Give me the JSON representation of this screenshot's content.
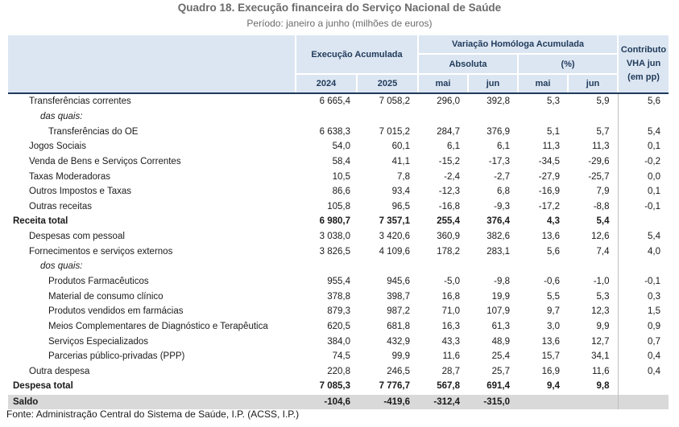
{
  "title": "Quadro 18. Execução financeira do Serviço Nacional de Saúde",
  "subtitle": "Período: janeiro a junho (milhões de euros)",
  "header": {
    "execucao": "Execução Acumulada",
    "variacao": "Variação Homóloga Acumulada",
    "absoluta": "Absoluta",
    "percent": "(%)",
    "contributo": "Contributo VHA jun (em pp)",
    "y2024": "2024",
    "y2025": "2025",
    "mai": "mai",
    "jun": "jun",
    "mai2": "mai",
    "jun2": "jun"
  },
  "rows": [
    {
      "label": "Transferências correntes",
      "v2024": "6 665,4",
      "v2025": "7 058,2",
      "abs_mai": "296,0",
      "abs_jun": "392,8",
      "pct_mai": "5,3",
      "pct_jun": "5,9",
      "contrib": "5,6"
    },
    {
      "label": "das quais:"
    },
    {
      "label": "Transferências do OE",
      "v2024": "6 638,3",
      "v2025": "7 015,2",
      "abs_mai": "284,7",
      "abs_jun": "376,9",
      "pct_mai": "5,1",
      "pct_jun": "5,7",
      "contrib": "5,4"
    },
    {
      "label": "Jogos Sociais",
      "v2024": "54,0",
      "v2025": "60,1",
      "abs_mai": "6,1",
      "abs_jun": "6,1",
      "pct_mai": "11,3",
      "pct_jun": "11,3",
      "contrib": "0,1"
    },
    {
      "label": "Venda de Bens e Serviços Correntes",
      "v2024": "58,4",
      "v2025": "41,1",
      "abs_mai": "-15,2",
      "abs_jun": "-17,3",
      "pct_mai": "-34,5",
      "pct_jun": "-29,6",
      "contrib": "-0,2"
    },
    {
      "label": "Taxas Moderadoras",
      "v2024": "10,5",
      "v2025": "7,8",
      "abs_mai": "-2,4",
      "abs_jun": "-2,7",
      "pct_mai": "-27,9",
      "pct_jun": "-25,7",
      "contrib": "0,0"
    },
    {
      "label": "Outros Impostos e Taxas",
      "v2024": "86,6",
      "v2025": "93,4",
      "abs_mai": "-12,3",
      "abs_jun": "6,8",
      "pct_mai": "-16,9",
      "pct_jun": "7,9",
      "contrib": "0,1"
    },
    {
      "label": "Outras receitas",
      "v2024": "105,8",
      "v2025": "96,5",
      "abs_mai": "-16,8",
      "abs_jun": "-9,3",
      "pct_mai": "-17,2",
      "pct_jun": "-8,8",
      "contrib": "-0,1"
    },
    {
      "label": "Receita total",
      "v2024": "6 980,7",
      "v2025": "7 357,1",
      "abs_mai": "255,4",
      "abs_jun": "376,4",
      "pct_mai": "4,3",
      "pct_jun": "5,4",
      "contrib": ""
    },
    {
      "label": "Despesas com pessoal",
      "v2024": "3 038,0",
      "v2025": "3 420,6",
      "abs_mai": "360,9",
      "abs_jun": "382,6",
      "pct_mai": "13,6",
      "pct_jun": "12,6",
      "contrib": "5,4"
    },
    {
      "label": "Fornecimentos e serviços externos",
      "v2024": "3 826,5",
      "v2025": "4 109,6",
      "abs_mai": "178,2",
      "abs_jun": "283,1",
      "pct_mai": "5,6",
      "pct_jun": "7,4",
      "contrib": "4,0"
    },
    {
      "label": "dos quais:"
    },
    {
      "label": "Produtos Farmacêuticos",
      "v2024": "955,4",
      "v2025": "945,6",
      "abs_mai": "-5,0",
      "abs_jun": "-9,8",
      "pct_mai": "-0,6",
      "pct_jun": "-1,0",
      "contrib": "-0,1"
    },
    {
      "label": "Material de consumo clínico",
      "v2024": "378,8",
      "v2025": "398,7",
      "abs_mai": "16,8",
      "abs_jun": "19,9",
      "pct_mai": "5,5",
      "pct_jun": "5,3",
      "contrib": "0,3"
    },
    {
      "label": "Produtos vendidos em farmácias",
      "v2024": "879,3",
      "v2025": "987,2",
      "abs_mai": "71,0",
      "abs_jun": "107,9",
      "pct_mai": "9,7",
      "pct_jun": "12,3",
      "contrib": "1,5"
    },
    {
      "label": "Meios Complementares de Diagnóstico e Terapêutica",
      "v2024": "620,5",
      "v2025": "681,8",
      "abs_mai": "16,3",
      "abs_jun": "61,3",
      "pct_mai": "3,0",
      "pct_jun": "9,9",
      "contrib": "0,9"
    },
    {
      "label": "Serviços Especializados",
      "v2024": "384,0",
      "v2025": "432,9",
      "abs_mai": "43,3",
      "abs_jun": "48,9",
      "pct_mai": "13,6",
      "pct_jun": "12,7",
      "contrib": "0,7"
    },
    {
      "label": "Parcerias público-privadas (PPP)",
      "v2024": "74,5",
      "v2025": "99,9",
      "abs_mai": "11,6",
      "abs_jun": "25,4",
      "pct_mai": "15,7",
      "pct_jun": "34,1",
      "contrib": "0,4"
    },
    {
      "label": "Outra despesa",
      "v2024": "220,8",
      "v2025": "246,5",
      "abs_mai": "28,7",
      "abs_jun": "25,7",
      "pct_mai": "16,9",
      "pct_jun": "11,6",
      "contrib": "0,4"
    },
    {
      "label": "Despesa total",
      "v2024": "7 085,3",
      "v2025": "7 776,7",
      "abs_mai": "567,8",
      "abs_jun": "691,4",
      "pct_mai": "9,4",
      "pct_jun": "9,8",
      "contrib": ""
    },
    {
      "label": "Saldo",
      "v2024": "-104,6",
      "v2025": "-419,6",
      "abs_mai": "-312,4",
      "abs_jun": "-315,0",
      "pct_mai": "",
      "pct_jun": "",
      "contrib": ""
    }
  ],
  "source": "Fonte: Administração Central do Sistema de Saúde, I.P. (ACSS, I.P.)"
}
